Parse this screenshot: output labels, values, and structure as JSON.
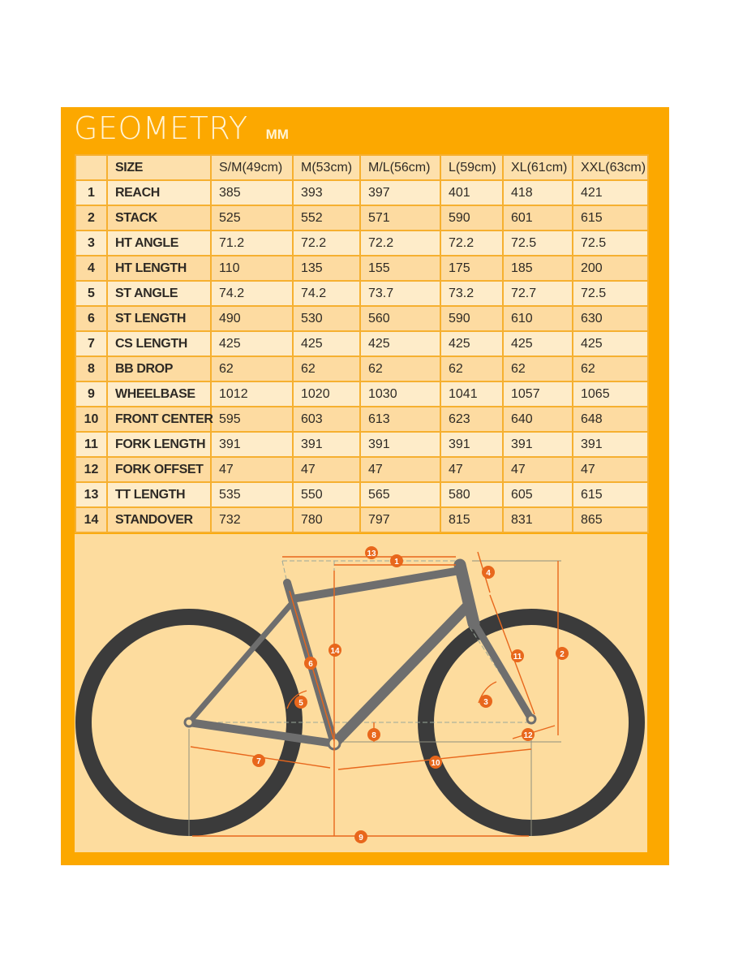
{
  "header": {
    "title": "GEOMETRY",
    "unit": "MM"
  },
  "colors": {
    "panel": "#fca800",
    "row_light": "#feecc9",
    "row_dark": "#fddba1",
    "diagram_bg": "#fddc9e",
    "accent": "#e8671c",
    "frame": "#6e6e6e",
    "tire": "#3b3b3b"
  },
  "table": {
    "columns": [
      "",
      "SIZE",
      "S/M(49cm)",
      "M(53cm)",
      "M/L(56cm)",
      "L(59cm)",
      "XL(61cm)",
      "XXL(63cm)"
    ],
    "rows": [
      {
        "num": "1",
        "label": "REACH",
        "values": [
          "385",
          "393",
          "397",
          "401",
          "418",
          "421"
        ]
      },
      {
        "num": "2",
        "label": "STACK",
        "values": [
          "525",
          "552",
          "571",
          "590",
          "601",
          "615"
        ]
      },
      {
        "num": "3",
        "label": "HT ANGLE",
        "values": [
          "71.2",
          "72.2",
          "72.2",
          "72.2",
          "72.5",
          "72.5"
        ]
      },
      {
        "num": "4",
        "label": "HT LENGTH",
        "values": [
          "110",
          "135",
          "155",
          "175",
          "185",
          "200"
        ]
      },
      {
        "num": "5",
        "label": "ST ANGLE",
        "values": [
          "74.2",
          "74.2",
          "73.7",
          "73.2",
          "72.7",
          "72.5"
        ]
      },
      {
        "num": "6",
        "label": "ST LENGTH",
        "values": [
          "490",
          "530",
          "560",
          "590",
          "610",
          "630"
        ]
      },
      {
        "num": "7",
        "label": "CS LENGTH",
        "values": [
          "425",
          "425",
          "425",
          "425",
          "425",
          "425"
        ]
      },
      {
        "num": "8",
        "label": "BB DROP",
        "values": [
          "62",
          "62",
          "62",
          "62",
          "62",
          "62"
        ]
      },
      {
        "num": "9",
        "label": "WHEELBASE",
        "values": [
          "1012",
          "1020",
          "1030",
          "1041",
          "1057",
          "1065"
        ]
      },
      {
        "num": "10",
        "label": "FRONT CENTER",
        "values": [
          "595",
          "603",
          "613",
          "623",
          "640",
          "648"
        ]
      },
      {
        "num": "11",
        "label": "FORK LENGTH",
        "values": [
          "391",
          "391",
          "391",
          "391",
          "391",
          "391"
        ]
      },
      {
        "num": "12",
        "label": "FORK OFFSET",
        "values": [
          "47",
          "47",
          "47",
          "47",
          "47",
          "47"
        ]
      },
      {
        "num": "13",
        "label": "TT LENGTH",
        "values": [
          "535",
          "550",
          "565",
          "580",
          "605",
          "615"
        ]
      },
      {
        "num": "14",
        "label": "STANDOVER",
        "values": [
          "732",
          "780",
          "797",
          "815",
          "831",
          "865"
        ]
      }
    ]
  },
  "diagram": {
    "markers": [
      "1",
      "2",
      "3",
      "4",
      "5",
      "6",
      "7",
      "8",
      "9",
      "10",
      "11",
      "12",
      "13",
      "14"
    ]
  }
}
